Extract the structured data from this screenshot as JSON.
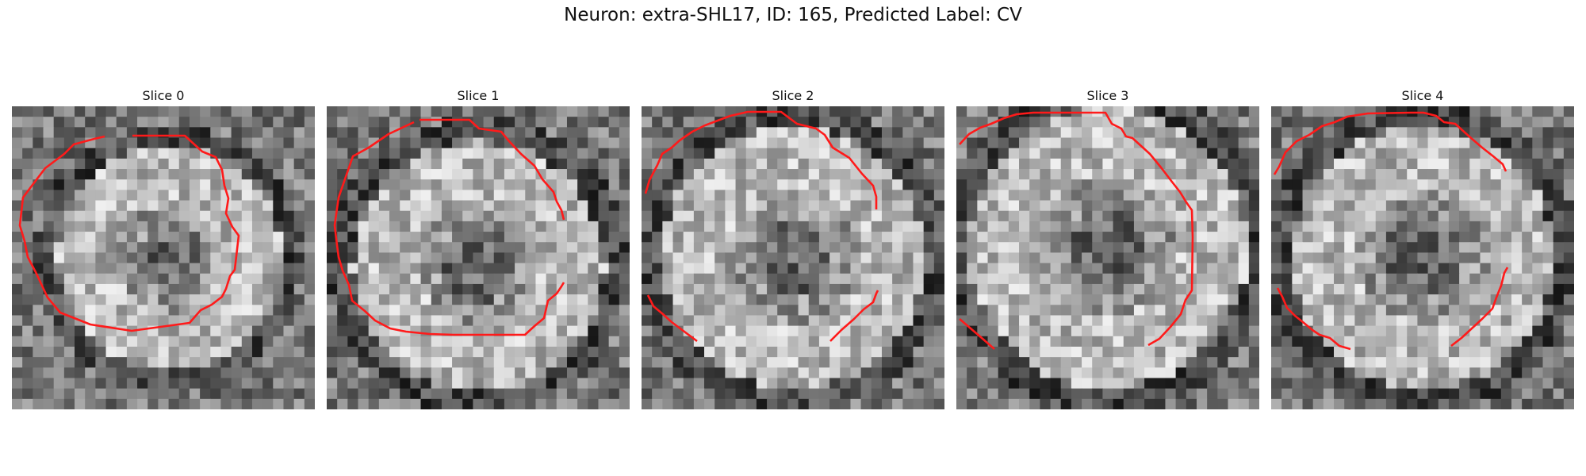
{
  "figure": {
    "title": "Neuron: extra-SHL17, ID: 165, Predicted Label: CV",
    "contour_color": "#ff1a1a",
    "slices": [
      {
        "title": "Slice 0",
        "seed": 11,
        "center": [
          0.52,
          0.5
        ],
        "radius": 0.4
      },
      {
        "title": "Slice 1",
        "seed": 23,
        "center": [
          0.5,
          0.53
        ],
        "radius": 0.45
      },
      {
        "title": "Slice 2",
        "seed": 37,
        "center": [
          0.5,
          0.5
        ],
        "radius": 0.47
      },
      {
        "title": "Slice 3",
        "seed": 41,
        "center": [
          0.5,
          0.47
        ],
        "radius": 0.5
      },
      {
        "title": "Slice 4",
        "seed": 59,
        "center": [
          0.5,
          0.5
        ],
        "radius": 0.47
      }
    ]
  }
}
